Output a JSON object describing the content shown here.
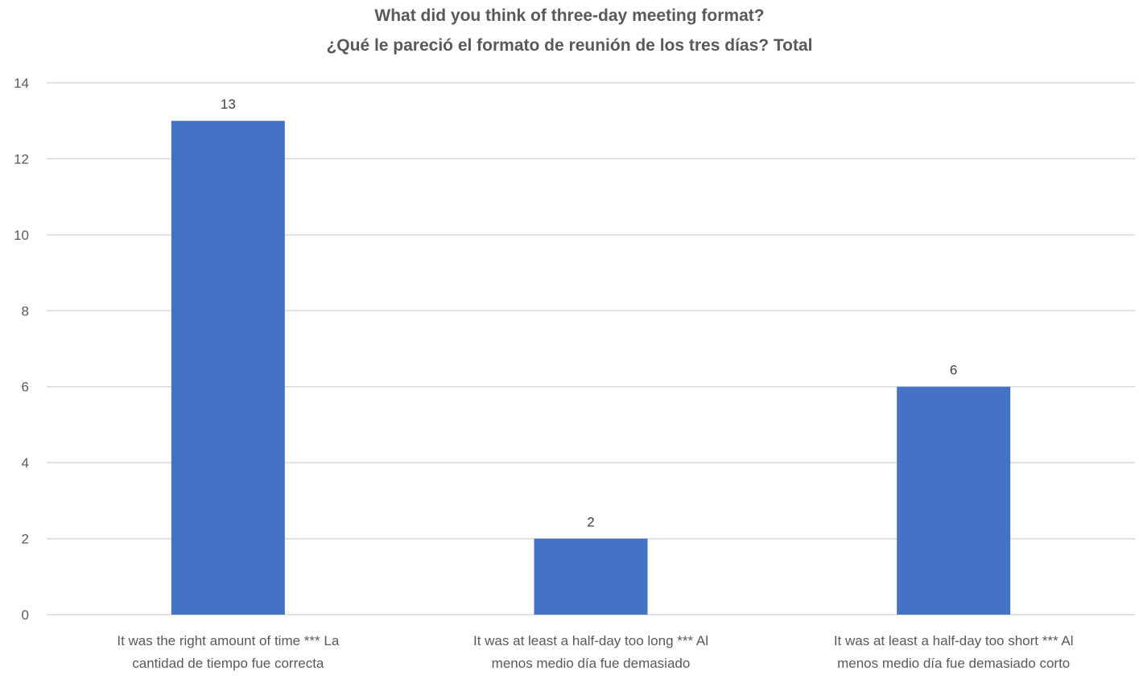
{
  "chart_data": {
    "type": "bar",
    "title_lines": [
      "What did you think of three-day meeting format?",
      "¿Qué le pareció el formato de reunión de los tres días? Total"
    ],
    "categories": [
      [
        "It was the right amount of time *** La",
        "cantidad de tiempo fue correcta"
      ],
      [
        "It was at least a half-day too long *** Al",
        "menos medio día fue demasiado"
      ],
      [
        "It was at least a half-day too short *** Al",
        "menos medio día fue demasiado corto"
      ]
    ],
    "values": [
      13,
      2,
      6
    ],
    "data_labels": [
      "13",
      "2",
      "6"
    ],
    "ylim": [
      0,
      14
    ],
    "yticks": [
      0,
      2,
      4,
      6,
      8,
      10,
      12,
      14
    ],
    "grid": true,
    "legend": "none",
    "colors": {
      "bar": "#4472C4",
      "grid": "#D9D9D9",
      "text": "#595959",
      "title": "#595959"
    }
  }
}
